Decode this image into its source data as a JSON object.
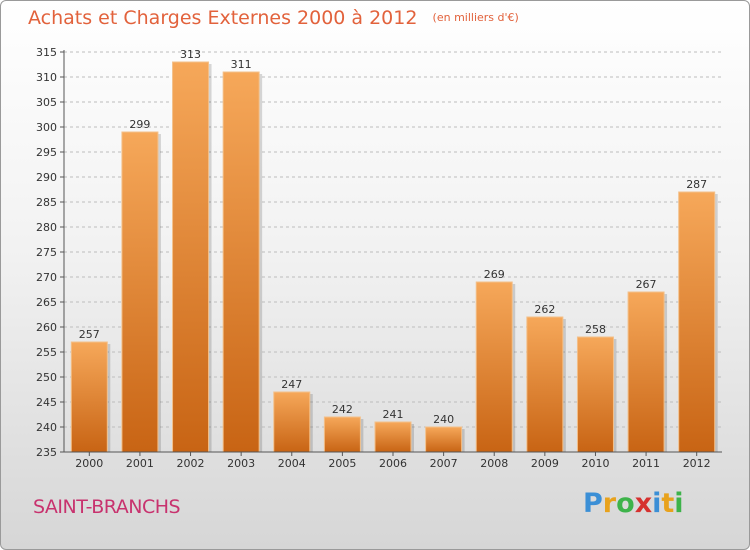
{
  "header": {
    "title": "Achats et Charges Externes 2000 à 2012",
    "unit": "(en milliers d'€)"
  },
  "footer": {
    "commune": "SAINT-BRANCHS",
    "logo_text": "Proxiti"
  },
  "colors": {
    "bar_light": "#f6a85a",
    "bar_dark": "#c86414",
    "title": "#e2623c",
    "commune": "#c8326e"
  },
  "chart_data": {
    "type": "bar",
    "title": "Achats et Charges Externes 2000 à 2012",
    "subtitle": "(en milliers d'€)",
    "categories": [
      "2000",
      "2001",
      "2002",
      "2003",
      "2004",
      "2005",
      "2006",
      "2007",
      "2008",
      "2009",
      "2010",
      "2011",
      "2012"
    ],
    "values": [
      257,
      299,
      313,
      311,
      247,
      242,
      241,
      240,
      269,
      262,
      258,
      267,
      287
    ],
    "ylim": [
      235,
      315
    ],
    "yticks": [
      235,
      240,
      245,
      250,
      255,
      260,
      265,
      270,
      275,
      280,
      285,
      290,
      295,
      300,
      305,
      310,
      315
    ],
    "grid": true,
    "legend": "none"
  }
}
